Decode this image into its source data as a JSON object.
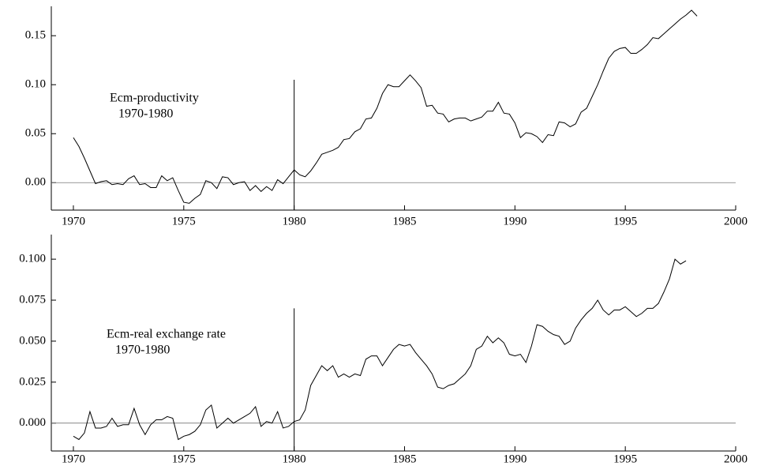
{
  "chart_data": [
    {
      "type": "line",
      "annotations": [
        "Ecm-productivity",
        "1970-1980"
      ],
      "x": [
        1970,
        1970.25,
        1970.5,
        1970.75,
        1971,
        1971.25,
        1971.5,
        1971.75,
        1972,
        1972.25,
        1972.5,
        1972.75,
        1973,
        1973.25,
        1973.5,
        1973.75,
        1974,
        1974.25,
        1974.5,
        1974.75,
        1975,
        1975.25,
        1975.5,
        1975.75,
        1976,
        1976.25,
        1976.5,
        1976.75,
        1977,
        1977.25,
        1977.5,
        1977.75,
        1978,
        1978.25,
        1978.5,
        1978.75,
        1979,
        1979.25,
        1979.5,
        1979.75,
        1980,
        1980.25,
        1980.5,
        1980.75,
        1981,
        1981.25,
        1981.5,
        1981.75,
        1982,
        1982.25,
        1982.5,
        1982.75,
        1983,
        1983.25,
        1983.5,
        1983.75,
        1984,
        1984.25,
        1984.5,
        1984.75,
        1985,
        1985.25,
        1985.5,
        1985.75,
        1986,
        1986.25,
        1986.5,
        1986.75,
        1987,
        1987.25,
        1987.5,
        1987.75,
        1988,
        1988.25,
        1988.5,
        1988.75,
        1989,
        1989.25,
        1989.5,
        1989.75,
        1990,
        1990.25,
        1990.5,
        1990.75,
        1991,
        1991.25,
        1991.5,
        1991.75,
        1992,
        1992.25,
        1992.5,
        1992.75,
        1993,
        1993.25,
        1993.5,
        1993.75,
        1994,
        1994.25,
        1994.5,
        1994.75,
        1995,
        1995.25,
        1995.5,
        1995.75,
        1996,
        1996.25,
        1996.5,
        1996.75,
        1997,
        1997.25,
        1997.5,
        1997.75,
        1998,
        1998.25
      ],
      "values": [
        0.046,
        0.037,
        0.025,
        0.012,
        -0.001,
        0.001,
        0.002,
        -0.002,
        -0.001,
        -0.002,
        0.004,
        0.007,
        -0.002,
        -0.001,
        -0.005,
        -0.005,
        0.007,
        0.002,
        0.005,
        -0.008,
        -0.02,
        -0.021,
        -0.016,
        -0.012,
        0.002,
        0.0,
        -0.006,
        0.006,
        0.005,
        -0.002,
        0.0,
        0.001,
        -0.008,
        -0.003,
        -0.009,
        -0.004,
        -0.008,
        0.003,
        -0.001,
        0.006,
        0.013,
        0.008,
        0.006,
        0.012,
        0.02,
        0.029,
        0.031,
        0.033,
        0.036,
        0.044,
        0.045,
        0.052,
        0.055,
        0.065,
        0.066,
        0.076,
        0.091,
        0.1,
        0.098,
        0.098,
        0.104,
        0.11,
        0.104,
        0.097,
        0.078,
        0.079,
        0.071,
        0.07,
        0.062,
        0.065,
        0.066,
        0.066,
        0.063,
        0.065,
        0.067,
        0.073,
        0.073,
        0.082,
        0.071,
        0.07,
        0.061,
        0.046,
        0.051,
        0.05,
        0.047,
        0.041,
        0.049,
        0.048,
        0.062,
        0.061,
        0.057,
        0.06,
        0.072,
        0.076,
        0.088,
        0.1,
        0.114,
        0.127,
        0.134,
        0.137,
        0.138,
        0.132,
        0.132,
        0.136,
        0.141,
        0.148,
        0.147,
        0.152,
        0.157,
        0.162,
        0.167,
        0.171,
        0.176,
        0.17
      ],
      "color": "#000000",
      "xlim": [
        1969,
        2000
      ],
      "xticks": [
        1970,
        1975,
        1980,
        1985,
        1990,
        1995,
        2000
      ],
      "ylim": [
        -0.028,
        0.18
      ],
      "yticks": [
        {
          "value": 0,
          "label": "0.00"
        },
        {
          "value": 0.05,
          "label": "0.05"
        },
        {
          "value": 0.1,
          "label": "0.10"
        },
        {
          "value": 0.15,
          "label": "0.15"
        }
      ],
      "hline": 0,
      "vline": {
        "x": 1980,
        "y": 0.105
      }
    },
    {
      "type": "line",
      "annotations": [
        "Ecm-real exchange rate",
        "1970-1980"
      ],
      "x": [
        1970,
        1970.25,
        1970.5,
        1970.75,
        1971,
        1971.25,
        1971.5,
        1971.75,
        1972,
        1972.25,
        1972.5,
        1972.75,
        1973,
        1973.25,
        1973.5,
        1973.75,
        1974,
        1974.25,
        1974.5,
        1974.75,
        1975,
        1975.25,
        1975.5,
        1975.75,
        1976,
        1976.25,
        1976.5,
        1976.75,
        1977,
        1977.25,
        1977.5,
        1977.75,
        1978,
        1978.25,
        1978.5,
        1978.75,
        1979,
        1979.25,
        1979.5,
        1979.75,
        1980,
        1980.25,
        1980.5,
        1980.75,
        1981,
        1981.25,
        1981.5,
        1981.75,
        1982,
        1982.25,
        1982.5,
        1982.75,
        1983,
        1983.25,
        1983.5,
        1983.75,
        1984,
        1984.25,
        1984.5,
        1984.75,
        1985,
        1985.25,
        1985.5,
        1985.75,
        1986,
        1986.25,
        1986.5,
        1986.75,
        1987,
        1987.25,
        1987.5,
        1987.75,
        1988,
        1988.25,
        1988.5,
        1988.75,
        1989,
        1989.25,
        1989.5,
        1989.75,
        1990,
        1990.25,
        1990.5,
        1990.75,
        1991,
        1991.25,
        1991.5,
        1991.75,
        1992,
        1992.25,
        1992.5,
        1992.75,
        1993,
        1993.25,
        1993.5,
        1993.75,
        1994,
        1994.25,
        1994.5,
        1994.75,
        1995,
        1995.25,
        1995.5,
        1995.75,
        1996,
        1996.25,
        1996.5,
        1996.75,
        1997,
        1997.25,
        1997.5,
        1997.75
      ],
      "values": [
        -0.008,
        -0.01,
        -0.006,
        0.007,
        -0.003,
        -0.003,
        -0.002,
        0.003,
        -0.002,
        -0.001,
        -0.001,
        0.009,
        -0.001,
        -0.007,
        -0.001,
        0.002,
        0.002,
        0.004,
        0.003,
        -0.01,
        -0.008,
        -0.007,
        -0.005,
        -0.001,
        0.008,
        0.011,
        -0.003,
        0.0,
        0.003,
        0.0,
        0.002,
        0.004,
        0.006,
        0.01,
        -0.002,
        0.001,
        0.0,
        0.007,
        -0.003,
        -0.002,
        0.001,
        0.002,
        0.008,
        0.023,
        0.029,
        0.035,
        0.032,
        0.035,
        0.028,
        0.03,
        0.028,
        0.03,
        0.029,
        0.039,
        0.041,
        0.041,
        0.035,
        0.04,
        0.045,
        0.048,
        0.047,
        0.048,
        0.043,
        0.039,
        0.035,
        0.03,
        0.022,
        0.021,
        0.023,
        0.024,
        0.027,
        0.03,
        0.035,
        0.045,
        0.047,
        0.053,
        0.049,
        0.052,
        0.049,
        0.042,
        0.041,
        0.042,
        0.037,
        0.047,
        0.06,
        0.059,
        0.056,
        0.054,
        0.053,
        0.048,
        0.05,
        0.058,
        0.063,
        0.067,
        0.07,
        0.075,
        0.069,
        0.066,
        0.069,
        0.069,
        0.071,
        0.068,
        0.065,
        0.067,
        0.07,
        0.07,
        0.073,
        0.08,
        0.088,
        0.1,
        0.097,
        0.099
      ],
      "color": "#000000",
      "xlim": [
        1969,
        2000
      ],
      "xticks": [
        1970,
        1975,
        1980,
        1985,
        1990,
        1995,
        2000
      ],
      "ylim": [
        -0.017,
        0.115
      ],
      "yticks": [
        {
          "value": 0,
          "label": "0.000"
        },
        {
          "value": 0.025,
          "label": "0.025"
        },
        {
          "value": 0.05,
          "label": "0.050"
        },
        {
          "value": 0.075,
          "label": "0.075"
        },
        {
          "value": 0.1,
          "label": "0.100"
        }
      ],
      "hline": 0,
      "vline": {
        "x": 1980,
        "y": 0.07
      }
    }
  ]
}
